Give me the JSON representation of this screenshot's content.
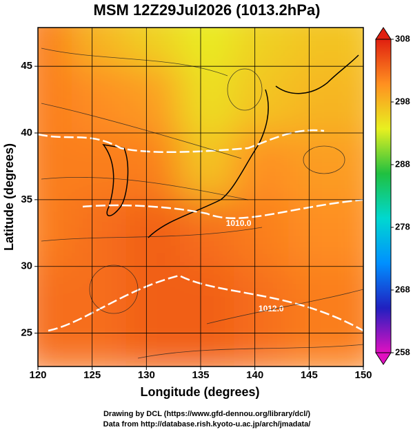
{
  "chart_data": {
    "type": "field-map",
    "title": "MSM 12Z29Jul2026 (1013.2hPa)",
    "x_label": "Longitude (degrees)",
    "y_label": "Latitude  (degrees)",
    "xlim": [
      120,
      150
    ],
    "ylim": [
      22.5,
      47.9
    ],
    "xticks": [
      120,
      125,
      130,
      135,
      140,
      145,
      150
    ],
    "yticks": [
      25,
      30,
      35,
      40,
      45
    ],
    "grid": true,
    "field": {
      "lon": [
        122.5,
        127.5,
        132.5,
        137.5,
        142.5,
        147.5
      ],
      "lat": [
        46,
        41,
        36,
        31,
        26
      ],
      "values": [
        [
          302,
          298,
          296,
          294,
          296,
          297
        ],
        [
          302,
          301,
          300,
          295,
          297,
          298
        ],
        [
          302,
          302,
          302,
          297,
          301,
          300
        ],
        [
          302,
          303,
          304,
          303,
          302,
          301
        ],
        [
          303,
          303,
          304,
          304,
          303,
          302
        ]
      ]
    },
    "colorbar": {
      "clim": [
        258,
        308
      ],
      "ticks": [
        258,
        268,
        278,
        288,
        298,
        308
      ],
      "colormap": [
        "#e010c0",
        "#2020c0",
        "#0090ff",
        "#00d8d0",
        "#20c040",
        "#e8f020",
        "#ff9020",
        "#e02010"
      ]
    },
    "contour_labels": [
      {
        "text": "1010.0",
        "lon": 138.5,
        "lat": 33.2
      },
      {
        "text": "1012.0",
        "lon": 141.5,
        "lat": 26.8
      }
    ],
    "footer": [
      "Drawing by DCL (https://www.gfd-dennou.org/library/dcl/)",
      "Data from http://database.rish.kyoto-u.ac.jp/arch/jmadata/"
    ]
  }
}
